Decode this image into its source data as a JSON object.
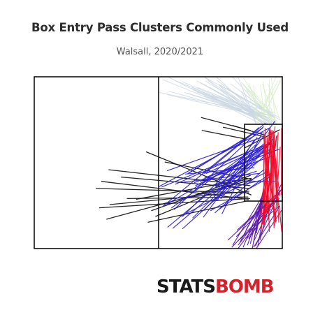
{
  "header": {
    "title": "Box Entry Pass Clusters Commonly Used",
    "subtitle": "Walsall, 2020/2021"
  },
  "logo": {
    "part1": "STATS",
    "part2": "BOMB"
  },
  "colors": {
    "pitch_line": "#111111",
    "cluster_black": "#1a1a1a",
    "cluster_blue": "#2b1fd0",
    "cluster_purple": "#5a1aa8",
    "cluster_red": "#ee0a2a",
    "cluster_faint": "#c9d6e0",
    "cluster_faint_green": "#d7ecc6"
  },
  "chart_data": {
    "type": "pitch-pass-map",
    "x_unit": "pitch length (StatsBomb 0-120)",
    "y_unit": "pitch width (StatsBomb 0-80)",
    "clusters": [
      {
        "color": "#1a1a1a",
        "passes": [
          [
            54.3,
            35.0,
            104.9,
            55.0
          ],
          [
            58.8,
            65.0,
            102.9,
            47.3
          ],
          [
            63.3,
            39.7,
            104.9,
            47.7
          ],
          [
            29.9,
            52.0,
            103.7,
            54.0
          ],
          [
            32.6,
            48.7,
            103.5,
            57.0
          ],
          [
            35.1,
            66.3,
            105.0,
            48.0
          ],
          [
            45.0,
            56.7,
            103.4,
            56.0
          ],
          [
            36.6,
            59.5,
            103.9,
            53.3
          ],
          [
            49.5,
            57.0,
            105.0,
            47.3
          ],
          [
            31.6,
            61.0,
            104.2,
            56.7
          ],
          [
            36.1,
            43.3,
            104.4,
            50.7
          ],
          [
            56.8,
            62.3,
            104.5,
            46.0
          ],
          [
            42.1,
            46.7,
            103.7,
            52.0
          ],
          [
            55.1,
            67.7,
            103.6,
            57.7
          ],
          [
            102.0,
            33.0,
            118.6,
            24.7
          ],
          [
            80.9,
            19.0,
            104.6,
            25.0
          ],
          [
            96.0,
            22.7,
            111.7,
            27.2
          ],
          [
            91.5,
            23.5,
            110.5,
            27.7
          ],
          [
            81.2,
            25.0,
            102.5,
            29.0
          ]
        ]
      },
      {
        "color": "#2b1fd0",
        "passes": [
          [
            81.9,
            65.3,
            116.4,
            20.7
          ],
          [
            87.3,
            54.3,
            107.8,
            28.3
          ],
          [
            67.1,
            70.5,
            111.7,
            34.3
          ],
          [
            74.6,
            45.0,
            110.4,
            24.0
          ],
          [
            85.4,
            62.3,
            115.2,
            46.0
          ],
          [
            71.8,
            70.7,
            113.5,
            35.0
          ],
          [
            68.3,
            50.0,
            102.9,
            35.3
          ],
          [
            89.4,
            61.7,
            114.4,
            45.0
          ],
          [
            81.7,
            47.7,
            117.3,
            49.0
          ],
          [
            90.3,
            56.7,
            113.0,
            32.3
          ],
          [
            86.8,
            50.3,
            107.5,
            44.0
          ],
          [
            60.6,
            51.0,
            114.0,
            23.7
          ],
          [
            71.8,
            65.0,
            107.1,
            31.7
          ],
          [
            80.3,
            48.7,
            115.8,
            36.7
          ],
          [
            72.4,
            49.0,
            108.9,
            45.0
          ],
          [
            82.4,
            45.0,
            111.7,
            21.7
          ],
          [
            70.5,
            57.0,
            109.4,
            48.3
          ],
          [
            73.1,
            45.3,
            106.3,
            42.3
          ],
          [
            64.4,
            43.7,
            109.8,
            28.3
          ],
          [
            87.5,
            63.3,
            111.0,
            43.3
          ],
          [
            64.2,
            59.3,
            114.3,
            31.3
          ],
          [
            89.5,
            47.0,
            109.6,
            32.3
          ],
          [
            78.0,
            50.7,
            114.5,
            33.7
          ],
          [
            74.4,
            45.0,
            105.9,
            26.3
          ],
          [
            61.8,
            51.3,
            114.5,
            30.7
          ],
          [
            70.9,
            65.0,
            112.5,
            44.3
          ],
          [
            88.4,
            48.3,
            111.8,
            31.7
          ],
          [
            67.8,
            61.7,
            110.9,
            23.3
          ],
          [
            66.5,
            61.0,
            105.0,
            34.3
          ],
          [
            83.2,
            45.0,
            108.7,
            33.7
          ],
          [
            90.9,
            63.7,
            110.3,
            26.0
          ],
          [
            82.9,
            61.3,
            114.0,
            31.0
          ],
          [
            62.3,
            60.3,
            108.7,
            23.7
          ],
          [
            89.8,
            52.7,
            110.9,
            31.3
          ],
          [
            82.5,
            47.0,
            118.5,
            33.7
          ],
          [
            88.5,
            57.7,
            106.2,
            29.7
          ],
          [
            64.6,
            70.0,
            116.1,
            28.7
          ],
          [
            87.9,
            51.3,
            109.6,
            38.7
          ],
          [
            76.7,
            65.7,
            113.2,
            31.0
          ],
          [
            77.5,
            49.3,
            115.7,
            34.7
          ]
        ]
      },
      {
        "color": "#5a1aa8",
        "passes": [
          [
            98.7,
            78.3,
            113.3,
            60.0
          ],
          [
            103.2,
            78.3,
            112.0,
            53.7
          ],
          [
            106.0,
            77.0,
            119.4,
            50.3
          ],
          [
            98.6,
            76.3,
            118.4,
            60.3
          ],
          [
            102.5,
            71.3,
            110.1,
            58.3
          ],
          [
            107.1,
            78.7,
            118.4,
            54.3
          ],
          [
            95.7,
            79.3,
            118.4,
            56.7
          ],
          [
            109.2,
            76.0,
            113.6,
            59.7
          ],
          [
            99.6,
            77.0,
            109.9,
            57.7
          ],
          [
            107.4,
            80.0,
            119.6,
            62.3
          ],
          [
            96.1,
            78.3,
            110.6,
            55.3
          ],
          [
            104.6,
            77.7,
            110.9,
            52.7
          ],
          [
            105.5,
            80.0,
            110.5,
            55.0
          ],
          [
            103.0,
            75.3,
            114.3,
            61.7
          ],
          [
            108.2,
            78.7,
            113.1,
            52.0
          ],
          [
            106.2,
            79.3,
            118.8,
            60.3
          ],
          [
            101.1,
            79.3,
            110.5,
            57.7
          ],
          [
            107.5,
            72.7,
            111.2,
            53.3
          ],
          [
            103.9,
            75.3,
            119.7,
            52.3
          ],
          [
            106.5,
            74.7,
            111.7,
            55.3
          ],
          [
            93.8,
            76.0,
            114.1,
            57.7
          ],
          [
            97.9,
            74.3,
            112.3,
            59.3
          ],
          [
            98.8,
            79.7,
            116.2,
            57.0
          ],
          [
            98.3,
            71.3,
            119.2,
            53.0
          ]
        ]
      },
      {
        "color": "#ee0a2a",
        "passes": [
          [
            113.7,
            72.0,
            112.6,
            28.3
          ],
          [
            111.2,
            64.0,
            117.2,
            27.7
          ],
          [
            111.3,
            68.7,
            110.9,
            32.0
          ],
          [
            113.3,
            66.3,
            116.5,
            23.3
          ],
          [
            116.1,
            69.3,
            114.1,
            24.0
          ],
          [
            113.3,
            59.0,
            111.1,
            28.0
          ],
          [
            116.0,
            70.3,
            115.7,
            25.3
          ],
          [
            119.8,
            72.3,
            115.0,
            29.3
          ],
          [
            109.8,
            65.0,
            114.0,
            25.0
          ],
          [
            116.9,
            56.7,
            118.0,
            26.0
          ],
          [
            118.0,
            60.7,
            115.7,
            32.3
          ],
          [
            117.5,
            58.0,
            114.6,
            25.0
          ],
          [
            109.8,
            71.7,
            114.6,
            27.7
          ],
          [
            110.7,
            59.0,
            115.3,
            26.0
          ],
          [
            116.6,
            67.0,
            119.0,
            32.7
          ],
          [
            118.8,
            55.3,
            115.6,
            29.0
          ],
          [
            110.7,
            68.7,
            113.3,
            26.0
          ],
          [
            112.0,
            63.3,
            114.4,
            25.7
          ],
          [
            112.5,
            60.0,
            116.3,
            27.0
          ],
          [
            117.1,
            67.3,
            111.1,
            32.0
          ],
          [
            119.6,
            54.7,
            119.7,
            24.0
          ],
          [
            114.9,
            58.0,
            116.0,
            30.0
          ],
          [
            110.2,
            56.0,
            115.1,
            29.3
          ],
          [
            116.8,
            67.7,
            111.1,
            26.0
          ],
          [
            112.3,
            63.0,
            111.1,
            27.3
          ],
          [
            112.9,
            63.7,
            111.7,
            24.0
          ],
          [
            118.3,
            67.7,
            116.0,
            28.0
          ],
          [
            115.5,
            61.7,
            113.7,
            24.7
          ],
          [
            110.9,
            68.3,
            117.5,
            27.3
          ],
          [
            113.9,
            61.3,
            115.2,
            25.0
          ]
        ]
      },
      {
        "color": "#c9d6e0",
        "passes": [
          [
            80.5,
            2.7,
            118.3,
            22.3
          ],
          [
            88.3,
            0.3,
            112.9,
            21.7
          ],
          [
            78.8,
            2.0,
            115.5,
            21.7
          ],
          [
            100.3,
            2.7,
            114.5,
            16.7
          ],
          [
            84.0,
            1.7,
            112.3,
            23.0
          ],
          [
            84.9,
            9.0,
            107.1,
            18.7
          ],
          [
            86.0,
            8.3,
            115.0,
            21.0
          ],
          [
            95.0,
            3.3,
            115.8,
            18.3
          ],
          [
            62.2,
            1.3,
            107.9,
            19.3
          ],
          [
            76.3,
            4.7,
            113.7,
            22.0
          ],
          [
            89.5,
            4.0,
            110.1,
            21.7
          ],
          [
            90.3,
            6.0,
            111.6,
            17.7
          ],
          [
            68.9,
            2.0,
            111.3,
            18.7
          ],
          [
            79.1,
            5.0,
            116.1,
            19.0
          ],
          [
            72.8,
            7.3,
            110.7,
            19.3
          ],
          [
            98.7,
            0.3,
            107.6,
            22.0
          ],
          [
            60.4,
            7.3,
            116.1,
            18.3
          ],
          [
            82.0,
            0.0,
            118.6,
            19.0
          ],
          [
            64.6,
            0.0,
            110.4,
            22.3
          ],
          [
            100.9,
            8.0,
            107.4,
            22.3
          ],
          [
            90.4,
            4.7,
            111.8,
            19.7
          ],
          [
            76.0,
            5.3,
            112.8,
            20.0
          ],
          [
            83.1,
            0.7,
            115.1,
            22.3
          ],
          [
            84.0,
            8.7,
            114.5,
            22.7
          ],
          [
            89.7,
            3.7,
            116.0,
            18.7
          ],
          [
            65.1,
            6.7,
            108.4,
            18.3
          ],
          [
            93.9,
            9.3,
            109.4,
            20.0
          ],
          [
            82.9,
            2.0,
            109.4,
            17.7
          ],
          [
            78.7,
            7.3,
            116.1,
            16.7
          ],
          [
            100.1,
            6.7,
            113.6,
            17.3
          ],
          [
            76.6,
            5.7,
            111.8,
            21.7
          ],
          [
            88.4,
            1.7,
            116.6,
            21.7
          ],
          [
            95.7,
            0.0,
            114.0,
            18.3
          ],
          [
            93.2,
            5.3,
            118.8,
            20.0
          ],
          [
            85.4,
            5.3,
            114.7,
            21.7
          ],
          [
            74.3,
            7.7,
            112.5,
            18.7
          ],
          [
            81.9,
            9.0,
            115.9,
            18.7
          ],
          [
            64.3,
            8.3,
            109.3,
            18.3
          ],
          [
            89.1,
            9.0,
            117.5,
            20.7
          ],
          [
            71.7,
            2.3,
            112.4,
            19.0
          ]
        ]
      },
      {
        "color": "#d7ecc6",
        "passes": [
          [
            117.0,
            0.0,
            108.8,
            18.7
          ],
          [
            110.7,
            2.3,
            113.7,
            21.3
          ],
          [
            101.5,
            1.0,
            116.4,
            22.3
          ],
          [
            110.4,
            3.3,
            117.2,
            22.3
          ],
          [
            104.0,
            3.0,
            108.4,
            17.3
          ],
          [
            113.1,
            3.3,
            118.8,
            20.0
          ],
          [
            114.8,
            0.7,
            116.7,
            22.0
          ],
          [
            102.7,
            6.0,
            115.5,
            19.7
          ],
          [
            119.4,
            1.0,
            110.7,
            19.0
          ],
          [
            102.5,
            5.0,
            108.4,
            20.7
          ],
          [
            106.1,
            4.0,
            108.2,
            20.3
          ],
          [
            109.4,
            3.7,
            111.8,
            21.3
          ],
          [
            103.5,
            4.3,
            116.8,
            19.0
          ],
          [
            114.3,
            7.0,
            109.9,
            18.3
          ],
          [
            101.1,
            3.7,
            117.4,
            22.3
          ],
          [
            118.0,
            1.7,
            109.2,
            17.7
          ],
          [
            119.2,
            2.0,
            109.7,
            20.0
          ],
          [
            113.7,
            1.3,
            113.7,
            23.0
          ]
        ]
      }
    ]
  }
}
